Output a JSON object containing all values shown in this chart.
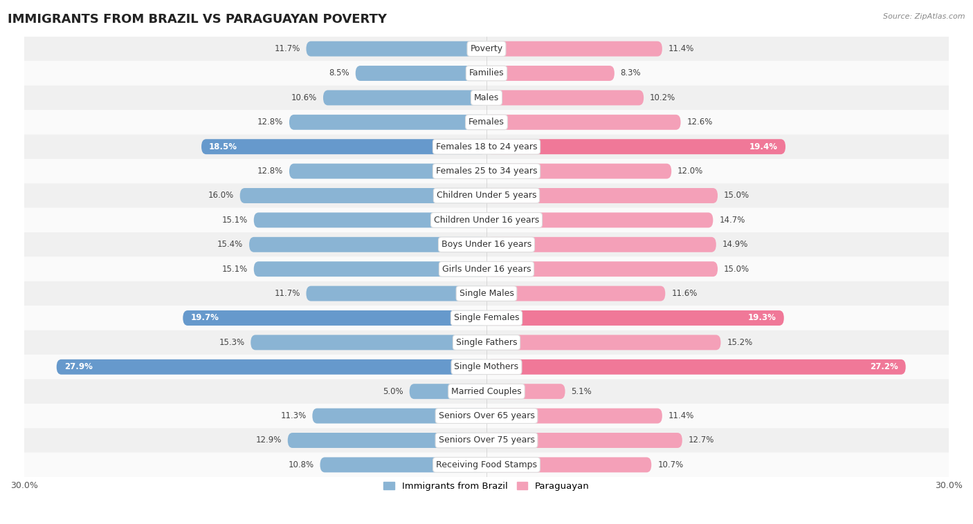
{
  "title": "IMMIGRANTS FROM BRAZIL VS PARAGUAYAN POVERTY",
  "source": "Source: ZipAtlas.com",
  "categories": [
    "Poverty",
    "Families",
    "Males",
    "Females",
    "Females 18 to 24 years",
    "Females 25 to 34 years",
    "Children Under 5 years",
    "Children Under 16 years",
    "Boys Under 16 years",
    "Girls Under 16 years",
    "Single Males",
    "Single Females",
    "Single Fathers",
    "Single Mothers",
    "Married Couples",
    "Seniors Over 65 years",
    "Seniors Over 75 years",
    "Receiving Food Stamps"
  ],
  "brazil_values": [
    11.7,
    8.5,
    10.6,
    12.8,
    18.5,
    12.8,
    16.0,
    15.1,
    15.4,
    15.1,
    11.7,
    19.7,
    15.3,
    27.9,
    5.0,
    11.3,
    12.9,
    10.8
  ],
  "paraguay_values": [
    11.4,
    8.3,
    10.2,
    12.6,
    19.4,
    12.0,
    15.0,
    14.7,
    14.9,
    15.0,
    11.6,
    19.3,
    15.2,
    27.2,
    5.1,
    11.4,
    12.7,
    10.7
  ],
  "brazil_color": "#8ab4d4",
  "paraguay_color": "#f4a0b8",
  "brazil_highlight_color": "#6699cc",
  "paraguay_highlight_color": "#f07898",
  "highlight_rows": [
    4,
    11,
    13
  ],
  "background_color": "#ffffff",
  "row_even_color": "#f0f0f0",
  "row_odd_color": "#fafafa",
  "bar_height": 0.62,
  "xlim": 30.0,
  "legend_labels": [
    "Immigrants from Brazil",
    "Paraguayan"
  ],
  "title_fontsize": 13,
  "label_fontsize": 9,
  "value_fontsize": 8.5,
  "axis_tick_fontsize": 9
}
